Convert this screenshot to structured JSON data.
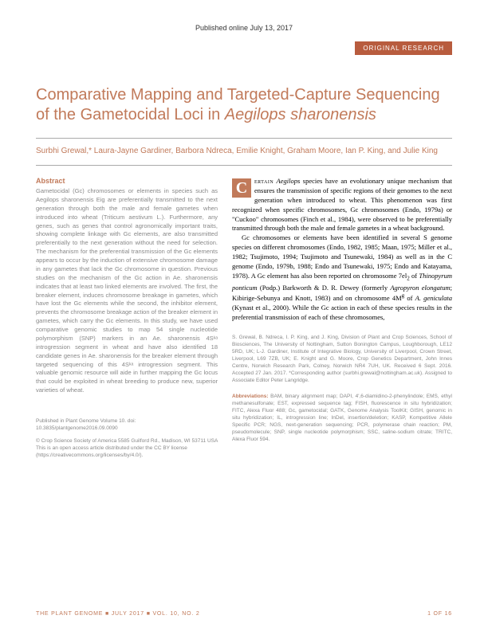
{
  "pub_date": "Published online July 13, 2017",
  "badge": "ORIGINAL RESEARCH",
  "title_part1": "Comparative Mapping and Targeted-Capture Sequencing of the Gametocidal Loci in ",
  "title_italic": "Aegilops sharonensis",
  "authors": "Surbhi Grewal,* Laura-Jayne Gardiner, Barbora Ndreca, Emilie Knight, Graham Moore, Ian P. King, and Julie King",
  "abstract_head": "Abstract",
  "abstract_body": "Gametocidal (Gc) chromosomes or elements in species such as Aegilops sharonensis Eig are preferentially transmitted to the next generation through both the male and female gametes when introduced into wheat (Triticum aestivum L.). Furthermore, any genes, such as genes that control agronomically important traits, showing complete linkage with Gc elements, are also transmitted preferentially to the next generation without the need for selection. The mechanism for the preferential transmission of the Gc elements appears to occur by the induction of extensive chromosome damage in any gametes that lack the Gc chromosome in question. Previous studies on the mechanism of the Gc action in Ae. sharonensis indicates that at least two linked elements are involved. The first, the breaker element, induces chromosome breakage in gametes, which have lost the Gc elements while the second, the inhibitor element, prevents the chromosome breakage action of the breaker element in gametes, which carry the Gc elements. In this study, we have used comparative genomic studies to map 54 single nucleotide polymorphism (SNP) markers in an Ae. sharonensis 4Sᵏᵃ introgression segment in wheat and have also identified 18 candidate genes in Ae. sharonensis for the breaker element through targeted sequencing of this 4Sᵏᵃ introgression segment. This valuable genomic resource will aide in further mapping the Gc locus that could be exploited in wheat breeding to produce new, superior varieties of wheat.",
  "body_p1_first": "ertain",
  "body_p1": " Aegilops species have an evolutionary unique mechanism that ensures the transmission of specific regions of their genomes to the next generation when introduced to wheat. This phenomenon was first recognized when specific chromosomes, Gc chromosomes (Endo, 1979a) or \"Cuckoo\" chromosomes (Finch et al., 1984), were observed to be preferentially transmitted through both the male and female gametes in a wheat background.",
  "body_p2": "Gc chromosomes or elements have been identified in several S genome species on different chromosomes (Endo, 1982, 1985; Maan, 1975; Miller et al., 1982; Tsujimoto, 1994; Tsujimoto and Tsunewaki, 1984) as well as in the C genome (Endo, 1979b, 1988; Endo and Tsunewaki, 1975; Endo and Katayama, 1978). A Gc element has also been reported on chromosome 7el₂ of Thinopyrum ponticum (Podp.) Barkworth & D. R. Dewey (formerly Agropyron elongatum; Kibirige-Sebunya and Knott, 1983) and on chromosome 4Mᵍ of A. geniculata (Kynast et al., 2000). While the Gc action in each of these species results in the preferential transmission of each of these chromosomes,",
  "affil": "S. Grewal, B. Ndreca, I. P. King, and J. King, Division of Plant and Crop Sciences, School of Biosciences, The University of Nottingham, Sutton Bonington Campus, Loughborough, LE12 5RD, UK; L-J. Gardiner, Institute of Integrative Biology, University of Liverpool, Crown Street, Liverpool, L69 7ZB, UK; E. Knight and G. Moore, Crop Genetics Department, John Innes Centre, Norwich Research Park, Colney, Norwich NR4 7UH, UK. Received 6 Sept. 2016. Accepted 27 Jan. 2017. *Corresponding author (surbhi.grewal@nottingham.ac.uk). Assigned to Associate Editor Peter Langridge.",
  "abbrev_head": "Abbreviations:",
  "abbrev_body": " BAM, binary alignment map; DAPI, 4',6-diamidino-2-phenylindole; EMS, ethyl methanesulfonate; EST, expressed sequence tag; FISH, fluorescence in situ hybridization; FITC, Alexa Fluor 488; Gc, gametocidal; GATK, Genome Analysis ToolKit; GISH, genomic in situ hybridization; IL, introgression line; InDel, insertion/deletion; KASP, Kompetitive Allele Specific PCR; NGS, next-generation sequencing; PCR, polymerase chain reaction; PM, pseudomolecule; SNP, single nucleotide polymorphism; SSC, saline-sodium citrate; TRITC, Alexa Fluor 594.",
  "pubinfo": "Published in Plant Genome\nVolume 10. doi: 10.3835/plantgenome2016.09.0090",
  "license": "© Crop Science Society of America\n5585 Guilford Rd., Madison, WI 53711 USA\nThis is an open access article distributed under the CC BY license (https://creativecommons.org/licenses/by/4.0/).",
  "footer_left": "THE PLANT GENOME ■ JULY 2017 ■ VOL. 10, NO. 2",
  "footer_right": "1 OF 16",
  "colors": {
    "accent": "#c17a5a",
    "badge": "#b85c3e",
    "muted": "#888888"
  }
}
